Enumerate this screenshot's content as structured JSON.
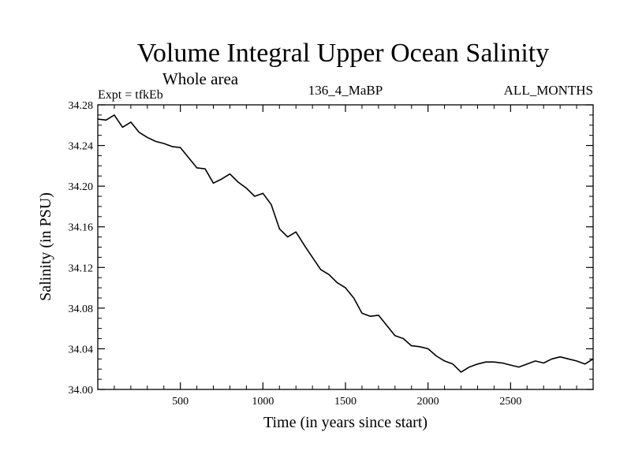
{
  "chart_data": {
    "type": "line",
    "title": "Volume Integral Upper Ocean Salinity",
    "subtitle": "Whole area",
    "annotations": {
      "left": "Expt = tfkEb",
      "center": "136_4_MaBP",
      "right": "ALL_MONTHS"
    },
    "xlabel": "Time (in years since start)",
    "ylabel": "Salinity (in PSU)",
    "xlim": [
      0,
      3000
    ],
    "ylim": [
      34.0,
      34.28
    ],
    "x_ticks": [
      500,
      1000,
      1500,
      2000,
      2500
    ],
    "x_tick_labels": [
      "500",
      "1000",
      "1500",
      "2000",
      "2500"
    ],
    "y_ticks": [
      34.0,
      34.04,
      34.08,
      34.12,
      34.16,
      34.2,
      34.24,
      34.28
    ],
    "y_tick_labels": [
      "34.00",
      "34.04",
      "34.08",
      "34.12",
      "34.16",
      "34.20",
      "34.24",
      "34.28"
    ],
    "grid": false,
    "series": [
      {
        "color": "#000000",
        "x": [
          0,
          50,
          100,
          150,
          200,
          250,
          300,
          350,
          400,
          450,
          500,
          550,
          600,
          650,
          700,
          750,
          800,
          850,
          900,
          950,
          1000,
          1050,
          1100,
          1150,
          1200,
          1250,
          1300,
          1350,
          1400,
          1450,
          1500,
          1550,
          1600,
          1650,
          1700,
          1750,
          1800,
          1850,
          1900,
          1950,
          2000,
          2050,
          2100,
          2150,
          2200,
          2250,
          2300,
          2350,
          2400,
          2450,
          2500,
          2550,
          2600,
          2650,
          2700,
          2750,
          2800,
          2850,
          2900,
          2950,
          3000
        ],
        "values": [
          34.266,
          34.265,
          34.27,
          34.258,
          34.263,
          34.253,
          34.248,
          34.244,
          34.242,
          34.239,
          34.238,
          34.228,
          34.218,
          34.217,
          34.203,
          34.207,
          34.212,
          34.204,
          34.198,
          34.19,
          34.193,
          34.182,
          34.158,
          34.15,
          34.155,
          34.142,
          34.13,
          34.118,
          34.113,
          34.105,
          34.1,
          34.09,
          34.075,
          34.072,
          34.073,
          34.063,
          34.053,
          34.05,
          34.043,
          34.042,
          34.04,
          34.033,
          34.028,
          34.025,
          34.017,
          34.022,
          34.025,
          34.027,
          34.027,
          34.026,
          34.024,
          34.022,
          34.025,
          34.028,
          34.026,
          34.03,
          34.032,
          34.03,
          34.028,
          34.025,
          34.03
        ]
      }
    ]
  }
}
